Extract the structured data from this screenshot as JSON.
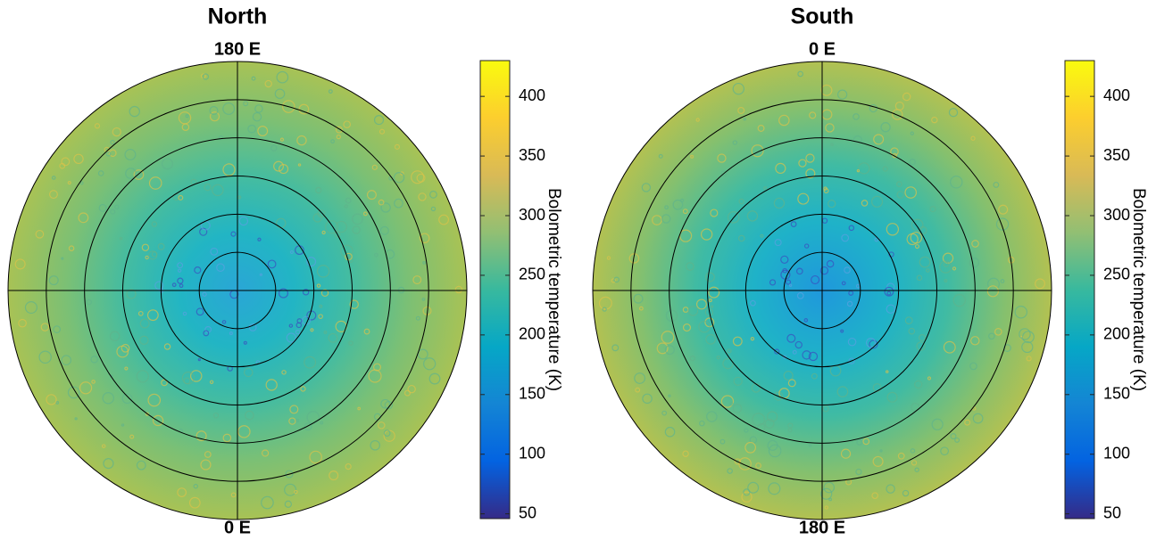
{
  "chart_data": [
    {
      "type": "polar-map",
      "title": "North",
      "top_label": "180 E",
      "bottom_label": "0 E",
      "colorbar_label": "Bolometric temperature (K)",
      "clim": [
        46,
        430
      ],
      "cticks": [
        50,
        100,
        150,
        200,
        250,
        300,
        350,
        400
      ]
    },
    {
      "type": "polar-map",
      "title": "South",
      "top_label": "0 E",
      "bottom_label": "180 E",
      "colorbar_label": "Bolometric temperature (K)",
      "clim": [
        46,
        430
      ],
      "cticks": [
        50,
        100,
        150,
        200,
        250,
        300,
        350,
        400
      ]
    }
  ]
}
